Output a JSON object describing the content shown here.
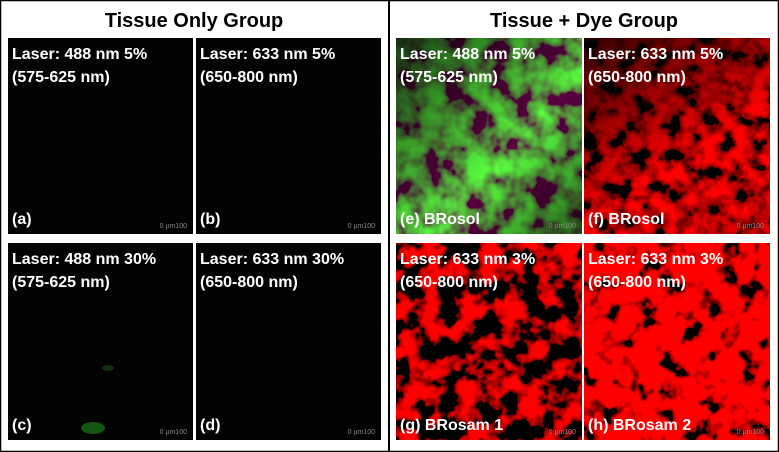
{
  "groups": [
    {
      "title": "Tissue Only Group",
      "panels": [
        {
          "laser": "Laser: 488 nm 5%",
          "range": "(575-625 nm)",
          "label": "(a)",
          "scale": "0 µm100"
        },
        {
          "laser": "Laser: 633 nm 5%",
          "range": "(650-800 nm)",
          "label": "(b)",
          "scale": "0 µm100"
        },
        {
          "laser": "Laser: 488 nm 30%",
          "range": "(575-625 nm)",
          "label": "(c)",
          "scale": "0 µm100"
        },
        {
          "laser": "Laser: 633 nm 30%",
          "range": "(650-800 nm)",
          "label": "(d)",
          "scale": "0 µm100"
        }
      ]
    },
    {
      "title": "Tissue + Dye Group",
      "panels": [
        {
          "laser": "Laser: 488 nm 5%",
          "range": "(575-625 nm)",
          "label": "(e) BRosol",
          "scale": "0 µm100"
        },
        {
          "laser": "Laser: 633 nm 5%",
          "range": "(650-800 nm)",
          "label": "(f) BRosol",
          "scale": "0 µm100"
        },
        {
          "laser": "Laser: 633 nm 3%",
          "range": "(650-800 nm)",
          "label": "(g) BRosam 1",
          "scale": "0 µm100"
        },
        {
          "laser": "Laser: 633 nm 3%",
          "range": "(650-800 nm)",
          "label": "(h) BRosam 2",
          "scale": "0 µm100"
        }
      ]
    }
  ]
}
